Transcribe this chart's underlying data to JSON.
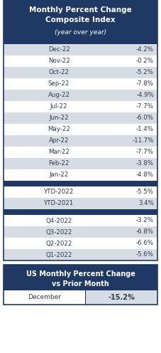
{
  "title_line1": "Monthly Percent Change",
  "title_line2": "Composite Index",
  "subtitle": "(year over year)",
  "header_bg": "#1F3864",
  "header_text_color": "#FFFFFF",
  "row_bg_dark": "#D6DCE4",
  "row_bg_light": "#FFFFFF",
  "monthly_rows": [
    [
      "Dec-22",
      "-4.2%"
    ],
    [
      "Nov-22",
      "-0.2%"
    ],
    [
      "Oct-22",
      "-5.2%"
    ],
    [
      "Sep-22",
      "-7.8%"
    ],
    [
      "Aug-22",
      "-4.9%"
    ],
    [
      "Jul-22",
      "-7.7%"
    ],
    [
      "Jun-22",
      "-6.0%"
    ],
    [
      "May-22",
      "-1.4%"
    ],
    [
      "Apr-22",
      "-11.7%"
    ],
    [
      "Mar-22",
      "-7.7%"
    ],
    [
      "Feb-22",
      "-3.8%"
    ],
    [
      "Jan-22",
      "-4.8%"
    ]
  ],
  "ytd_rows": [
    [
      "YTD-2022",
      "-5.5%"
    ],
    [
      "YTD-2021",
      "3.4%"
    ]
  ],
  "quarterly_rows": [
    [
      "Q4-2022",
      "-3.2%"
    ],
    [
      "Q3-2022",
      "-6.8%"
    ],
    [
      "Q2-2022",
      "-6.6%"
    ],
    [
      "Q1-2022",
      "-5.6%"
    ]
  ],
  "bottom_title_line1": "US Monthly Percent Change",
  "bottom_title_line2": "vs Prior Month",
  "bottom_row_label": "December",
  "bottom_row_value": "-15.2%",
  "text_color": "#2E3B4E",
  "separator_color": "#1F3864",
  "fig_w": 2.27,
  "fig_h": 4.96,
  "dpi": 100
}
